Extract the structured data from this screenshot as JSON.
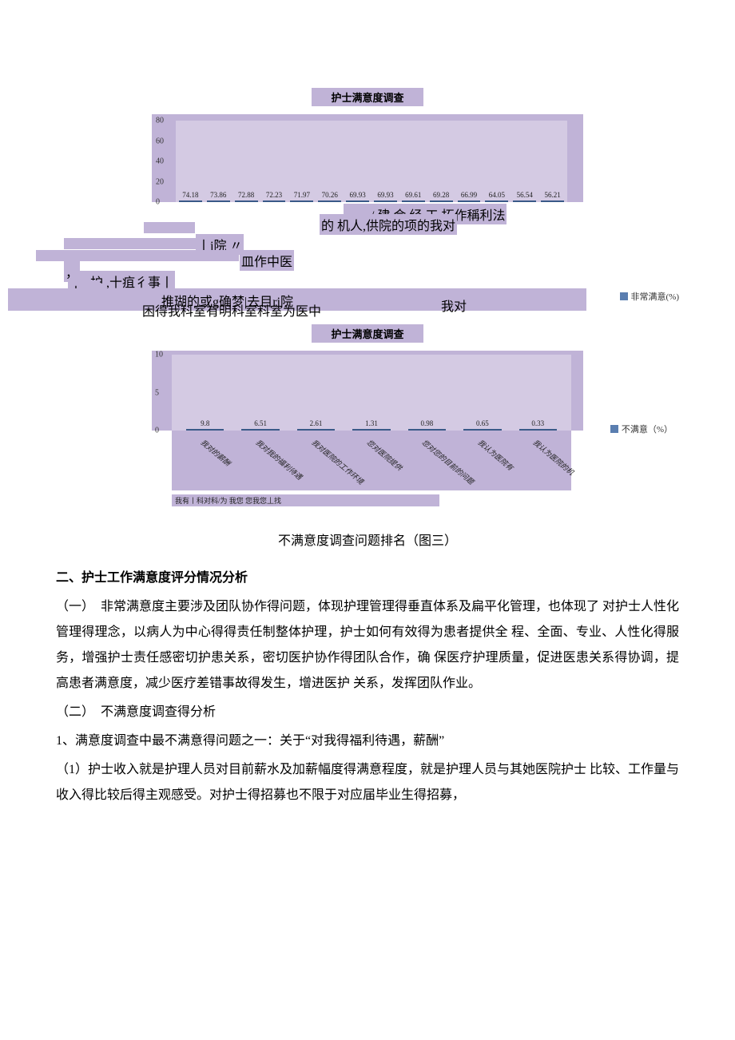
{
  "chart1": {
    "type": "bar",
    "title": "护士满意度调查",
    "values": [
      74.18,
      73.86,
      72.88,
      72.23,
      71.97,
      70.26,
      69.93,
      69.93,
      69.61,
      69.28,
      66.99,
      64.05,
      56.54,
      56.21
    ],
    "value_labels": [
      "74.18",
      "73.86",
      "72.88",
      "72.23",
      "71.97",
      "70.26",
      "69.93",
      "69.93",
      "69.61",
      "69.28",
      "66.99",
      "64.05",
      "56.54",
      "56.21"
    ],
    "ylim": [
      0,
      80
    ],
    "ytick_step": 20,
    "yticks": [
      "0",
      "20",
      "40",
      "60",
      "80"
    ],
    "bar_color": "#5a7eb0",
    "bar_border": "#3a5a88",
    "plot_bg": "#d4cae3",
    "panel_bg": "#c0b3d7",
    "legend": "非常满意(%)"
  },
  "chart1_garbled": {
    "lines": [
      "，一/  建 会 经  工 拓作稱利法",
      "的 机人,供院的项的我对",
      "丨j院 〃",
      "皿作中医",
      "，",
      "，护 ,十疽彳事丨",
      "丨 …",
      "推瑚的或g确梦|去目rj院",
      "困得我科室有明科室科室为医中",
      "我对"
    ]
  },
  "chart2": {
    "type": "bar",
    "title": "护士满意度调查",
    "values": [
      9.8,
      6.51,
      2.61,
      1.31,
      0.98,
      0.65,
      0.33
    ],
    "value_labels": [
      "9.8",
      "6.51",
      "2.61",
      "1.31",
      "0.98",
      "0.65",
      "0.33"
    ],
    "ylim": [
      0,
      10
    ],
    "ytick_step": 5,
    "yticks": [
      "0",
      "5",
      "10"
    ],
    "bar_color": "#5a7eb0",
    "bar_border": "#3a5a88",
    "plot_bg": "#d4cae3",
    "panel_bg": "#c0b3d7",
    "legend": "不满意（%）",
    "x_labels_rotated": [
      "我对的薪酬",
      "我对我的福利待遇",
      "我对医院的工作环境",
      "您对医院提供",
      "您对您的目前的问题",
      "我认为医院有",
      "我认为医院的机"
    ],
    "x_garbled_bottom": "我有丨科对科/为  我您 您我您丄找"
  },
  "body": {
    "fig_caption": "不满意度调查问题排名（图三）",
    "heading": "二、护士工作满意度评分情况分析",
    "para_1": "（一）　非常满意度主要涉及团队协作得问题，体现护理管理得垂直体系及扁平化管理，也体现了 对护士人性化管理得理念，以病人为中心得得责任制整体护理，护士如何有效得为患者提供全 程、全面、专业、人性化得服务，增强护士责任感密切护患关系，密切医护协作得团队合作，确 保医疗护理质量，促进医患关系得协调，提高患者满意度，减少医疗差错事故得发生，增进医护 关系，发挥团队作业。",
    "para_2": "（二）　不满意度调查得分析",
    "para_3": "1、满意度调查中最不满意得问题之一：关于“对我得福利待遇，薪酬”",
    "para_4": "（1）护士收入就是护理人员对目前薪水及加薪幅度得满意程度，就是护理人员与其她医院护士 比较、工作量与收入得比较后得主观感受。对护士得招募也不限于对应届毕业生得招募，"
  }
}
